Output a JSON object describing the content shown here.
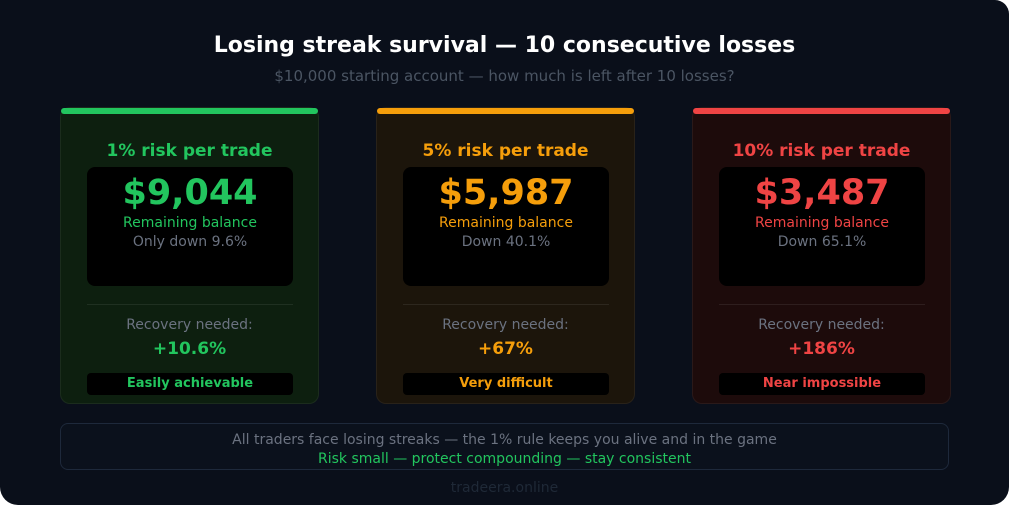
{
  "title": "Losing streak survival — 10 consecutive losses",
  "subtitle": "$10,000 starting account — how much is left after 10 losses?",
  "cards": [
    {
      "title": "1% risk per trade",
      "amount": "$9,044",
      "balance_label": "Remaining balance",
      "down": "Only down 9.6%",
      "recovery_label": "Recovery needed:",
      "recovery": "+10.6%",
      "badge": "Easily achievable",
      "color": "#22c55e",
      "bg": "#0d1f0f"
    },
    {
      "title": "5% risk per trade",
      "amount": "$5,987",
      "balance_label": "Remaining balance",
      "down": "Down 40.1%",
      "recovery_label": "Recovery needed:",
      "recovery": "+67%",
      "badge": "Very difficult",
      "color": "#f59e0b",
      "bg": "#1c150b"
    },
    {
      "title": "10% risk per trade",
      "amount": "$3,487",
      "balance_label": "Remaining balance",
      "down": "Down 65.1%",
      "recovery_label": "Recovery needed:",
      "recovery": "+186%",
      "badge": "Near impossible",
      "color": "#ef4444",
      "bg": "#1d0b0b"
    }
  ],
  "footer": {
    "line1": "All traders face losing streaks — the 1% rule keeps you alive and in the game",
    "line2": "Risk small — protect compounding — stay consistent"
  },
  "brand": "tradeera.online"
}
